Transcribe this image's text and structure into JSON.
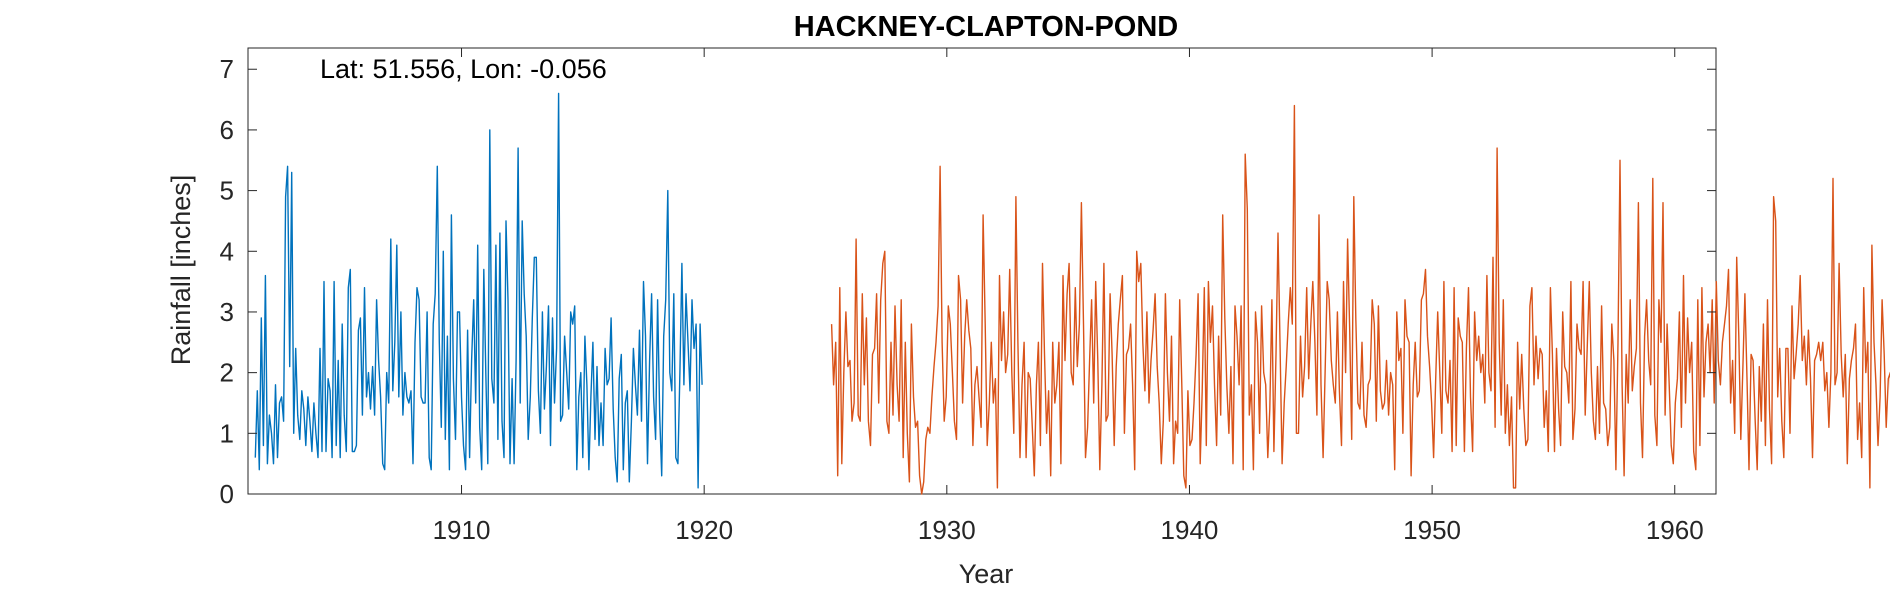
{
  "chart_data": {
    "type": "line",
    "title": "HACKNEY-CLAPTON-POND",
    "xlabel": "Year",
    "ylabel": "Rainfall [inches]",
    "annotation": "Lat: 51.556, Lon: -0.056",
    "xlim": [
      1901.2,
      1961.7
    ],
    "ylim": [
      0,
      7.35
    ],
    "xticks": [
      1910,
      1920,
      1930,
      1940,
      1950,
      1960
    ],
    "yticks": [
      0,
      1,
      2,
      3,
      4,
      5,
      6,
      7
    ],
    "grid": false,
    "series": [
      {
        "color": "#0072BD",
        "x_start": 1901.5,
        "x_step": 0.08333,
        "values": [
          0.6,
          1.7,
          0.4,
          2.9,
          0.8,
          3.6,
          0.5,
          1.3,
          1.0,
          0.5,
          1.8,
          0.6,
          1.5,
          1.6,
          1.2,
          4.9,
          5.4,
          2.1,
          5.3,
          1.0,
          2.4,
          1.3,
          0.9,
          1.7,
          1.4,
          0.8,
          1.6,
          1.2,
          0.7,
          1.5,
          1.0,
          0.6,
          2.4,
          0.7,
          3.5,
          0.7,
          1.9,
          1.7,
          0.6,
          3.5,
          0.8,
          2.2,
          0.6,
          2.8,
          1.3,
          0.7,
          3.4,
          3.7,
          0.7,
          0.7,
          0.8,
          2.7,
          2.9,
          1.3,
          3.4,
          1.6,
          2.0,
          1.4,
          2.1,
          1.3,
          3.2,
          2.2,
          1.6,
          0.5,
          0.4,
          2.0,
          1.5,
          4.2,
          1.7,
          2.5,
          4.1,
          1.6,
          3.0,
          1.3,
          2.0,
          1.6,
          1.5,
          1.7,
          0.5,
          2.5,
          3.4,
          3.2,
          1.6,
          1.5,
          1.5,
          3.0,
          0.6,
          0.4,
          2.8,
          3.3,
          5.4,
          2.5,
          1.1,
          4.0,
          0.9,
          2.6,
          0.4,
          4.6,
          1.9,
          0.9,
          3.0,
          3.0,
          1.6,
          0.8,
          0.4,
          2.7,
          0.6,
          2.2,
          3.2,
          1.5,
          4.1,
          1.1,
          0.4,
          3.7,
          2.0,
          0.5,
          6.0,
          1.9,
          1.5,
          4.1,
          0.9,
          4.3,
          1.2,
          0.6,
          4.5,
          3.2,
          0.5,
          1.9,
          0.5,
          2.2,
          5.7,
          1.5,
          4.5,
          3.3,
          2.6,
          0.9,
          1.6,
          2.9,
          3.9,
          3.9,
          1.7,
          1.0,
          3.0,
          1.4,
          2.1,
          3.1,
          0.8,
          2.9,
          1.5,
          2.4,
          6.6,
          1.2,
          1.3,
          2.6,
          2.0,
          1.4,
          3.0,
          2.8,
          3.1,
          0.4,
          1.6,
          2.0,
          0.6,
          2.6,
          1.8,
          0.4,
          1.6,
          2.5,
          0.9,
          2.1,
          0.8,
          1.5,
          0.8,
          2.4,
          1.8,
          1.9,
          2.9,
          1.4,
          0.6,
          0.2,
          1.9,
          2.3,
          0.4,
          1.5,
          1.7,
          0.2,
          1.2,
          2.4,
          1.8,
          1.3,
          2.7,
          1.2,
          3.5,
          2.6,
          0.5,
          2.2,
          3.3,
          1.6,
          0.9,
          3.2,
          1.3,
          0.3,
          2.6,
          3.2,
          5.0,
          2.0,
          1.7,
          3.3,
          0.6,
          0.5,
          2.0,
          3.8,
          1.8,
          3.3,
          2.5,
          1.7,
          3.2,
          2.4,
          2.8,
          0.1,
          2.8,
          1.8
        ]
      },
      {
        "color": "#D95319",
        "x_start": 1925.25,
        "x_step": 0.0844,
        "values": [
          2.8,
          1.8,
          2.5,
          0.3,
          3.4,
          0.5,
          2.0,
          3.0,
          2.1,
          2.2,
          1.2,
          1.5,
          4.2,
          1.3,
          1.2,
          3.3,
          1.8,
          2.9,
          1.2,
          0.8,
          2.3,
          2.4,
          3.3,
          1.5,
          3.2,
          3.8,
          4.0,
          1.2,
          1.0,
          2.5,
          1.3,
          3.1,
          1.8,
          1.2,
          3.2,
          0.6,
          2.5,
          1.0,
          0.2,
          2.8,
          1.6,
          1.1,
          1.2,
          0.3,
          0.0,
          0.2,
          0.9,
          1.1,
          1.0,
          1.6,
          2.1,
          2.5,
          3.1,
          5.4,
          2.5,
          1.2,
          1.6,
          3.1,
          2.8,
          2.0,
          1.2,
          0.9,
          3.6,
          3.2,
          1.5,
          2.6,
          3.2,
          2.7,
          2.4,
          0.8,
          1.8,
          2.1,
          1.6,
          1.1,
          4.6,
          2.8,
          0.8,
          1.5,
          2.5,
          1.5,
          1.9,
          0.1,
          3.6,
          2.2,
          3.0,
          2.0,
          2.3,
          3.7,
          2.0,
          1.0,
          4.9,
          2.5,
          0.6,
          1.8,
          2.5,
          0.6,
          2.0,
          1.9,
          1.1,
          0.3,
          1.8,
          2.5,
          0.8,
          3.8,
          2.3,
          1.0,
          1.7,
          0.3,
          2.5,
          1.5,
          1.8,
          2.5,
          0.5,
          3.6,
          2.2,
          3.3,
          3.8,
          2.0,
          1.8,
          3.4,
          2.1,
          2.8,
          4.8,
          2.8,
          0.6,
          1.1,
          2.2,
          3.2,
          1.5,
          3.5,
          2.2,
          0.4,
          1.8,
          3.8,
          1.2,
          1.3,
          3.3,
          2.3,
          0.8,
          2.1,
          2.8,
          3.2,
          3.6,
          1.0,
          2.3,
          2.4,
          2.8,
          1.8,
          0.4,
          4.0,
          3.5,
          3.8,
          2.5,
          1.7,
          3.0,
          1.5,
          2.2,
          2.7,
          3.3,
          2.1,
          1.5,
          0.5,
          1.2,
          3.3,
          2.0,
          1.2,
          2.6,
          0.5,
          1.2,
          1.0,
          3.2,
          1.8,
          0.3,
          0.1,
          1.7,
          0.8,
          0.9,
          1.5,
          2.3,
          3.3,
          0.5,
          1.7,
          3.4,
          0.8,
          3.5,
          2.5,
          3.1,
          1.8,
          0.8,
          2.6,
          1.3,
          4.6,
          2.9,
          1.8,
          1.0,
          2.1,
          0.5,
          3.1,
          2.6,
          1.8,
          3.1,
          0.4,
          5.6,
          4.7,
          1.3,
          1.8,
          0.4,
          3.0,
          2.5,
          1.0,
          3.1,
          2.0,
          1.8,
          0.6,
          1.4,
          3.2,
          0.7,
          2.3,
          4.3,
          2.4,
          0.5,
          1.5,
          2.1,
          2.8,
          3.4,
          2.8,
          6.4,
          1.0,
          1.0,
          2.6,
          1.6,
          2.1,
          3.4,
          1.9,
          2.8,
          3.5,
          2.5,
          1.3,
          4.6,
          1.8,
          0.6,
          2.0,
          3.5,
          3.2,
          2.2,
          1.8,
          1.5,
          3.0,
          1.7,
          0.8,
          3.5,
          2.0,
          4.2,
          2.7,
          0.9,
          4.9,
          2.9,
          1.5,
          1.4,
          2.5,
          1.3,
          1.1,
          1.8,
          1.9,
          3.2,
          2.8,
          1.2,
          3.1,
          1.7,
          1.4,
          1.5,
          2.2,
          1.3,
          2.0,
          1.8,
          0.4,
          3.0,
          2.2,
          2.4,
          1.0,
          3.2,
          2.6,
          2.5,
          0.3,
          1.8,
          2.5,
          1.6,
          1.7,
          3.2,
          3.3,
          3.7,
          2.6,
          2.1,
          1.5,
          0.6,
          1.9,
          3.0,
          2.0,
          1.0,
          3.5,
          1.7,
          1.5,
          2.2,
          0.7,
          3.4,
          0.8,
          2.9,
          2.6,
          2.5,
          0.7,
          2.4,
          3.4,
          1.6,
          0.7,
          3.0,
          2.2,
          2.6,
          2.0,
          2.3,
          1.5,
          3.6,
          2.0,
          1.7,
          3.9,
          1.1,
          5.7,
          2.5,
          1.3,
          3.2,
          1.0,
          1.8,
          0.8,
          1.6,
          0.1,
          0.1,
          2.5,
          1.4,
          2.3,
          1.4,
          0.8,
          0.9,
          3.1,
          3.4,
          1.8,
          2.6,
          1.9,
          2.4,
          2.3,
          1.1,
          1.7,
          0.7,
          3.4,
          2.3,
          0.7,
          2.4,
          1.4,
          0.8,
          3.0,
          2.1,
          2.0,
          1.5,
          3.5,
          0.9,
          1.4,
          2.8,
          2.4,
          2.3,
          3.5,
          1.3,
          2.4,
          3.5,
          2.0,
          1.2,
          0.9,
          2.1,
          1.0,
          3.1,
          1.5,
          1.4,
          0.8,
          1.1,
          2.8,
          2.2,
          0.4,
          2.5,
          5.5,
          1.8,
          0.3,
          2.3,
          1.5,
          3.2,
          1.7,
          2.1,
          2.4,
          4.8,
          1.5,
          0.6,
          2.6,
          3.2,
          2.2,
          1.8,
          5.2,
          1.3,
          0.8,
          3.2,
          2.5,
          4.8,
          1.3,
          2.8,
          1.8,
          0.8,
          0.5,
          1.5,
          1.9,
          3.0,
          1.1,
          3.6,
          1.5,
          2.9,
          2.0,
          2.5,
          0.7,
          0.4,
          3.2,
          0.8,
          3.4,
          1.6,
          2.5,
          2.8,
          2.0,
          3.2,
          1.5,
          3.5,
          2.2,
          1.8,
          2.5,
          2.8,
          3.1,
          3.7,
          1.5,
          2.2,
          1.0,
          3.9,
          2.6,
          0.9,
          2.1,
          3.3,
          1.9,
          0.4,
          2.3,
          2.2,
          1.2,
          0.4,
          2.1,
          1.2,
          2.8,
          0.8,
          3.2,
          1.4,
          0.5,
          4.9,
          4.5,
          1.6,
          2.4,
          1.2,
          0.6,
          2.4,
          2.4,
          1.0,
          3.1,
          1.9,
          2.3,
          2.8,
          3.6,
          2.2,
          2.6,
          1.8,
          2.7,
          1.9,
          0.6,
          2.2,
          2.3,
          2.5,
          2.2,
          2.5,
          1.7,
          2.0,
          1.1,
          2.0,
          5.2,
          1.8,
          2.0,
          3.8,
          2.3,
          1.6,
          2.3,
          0.5,
          1.9,
          2.2,
          2.4,
          2.8,
          0.9,
          1.5,
          0.6,
          3.4,
          2.0,
          2.5,
          0.1,
          4.1,
          2.5,
          1.8,
          0.8,
          1.6,
          3.2,
          2.3,
          1.1,
          1.9,
          2.0,
          0.5,
          2.2,
          2.8,
          2.7,
          4.1,
          5.1,
          4.8,
          3.6,
          2.3
        ]
      }
    ]
  }
}
